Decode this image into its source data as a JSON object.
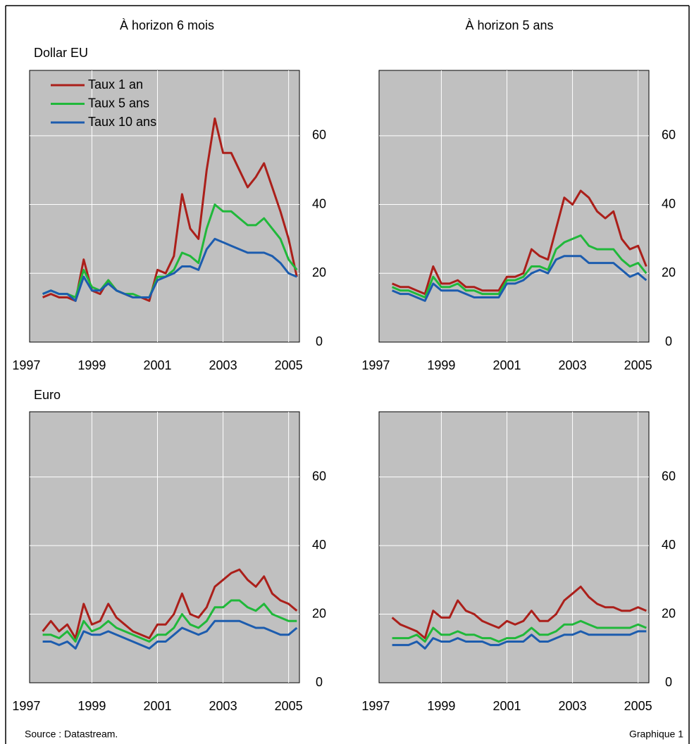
{
  "column_titles": [
    "À horizon 6 mois",
    "À horizon 5 ans"
  ],
  "row_titles": [
    "Dollar EU",
    "Euro"
  ],
  "source": "Source : Datastream.",
  "figure_label": "Graphique 1",
  "chart_data": [
    {
      "type": "line",
      "legend": "upper left",
      "x": [
        1997.5,
        1997.75,
        1998,
        1998.25,
        1998.5,
        1998.75,
        1999,
        1999.25,
        1999.5,
        1999.75,
        2000,
        2000.25,
        2000.5,
        2000.75,
        2001,
        2001.25,
        2001.5,
        2001.75,
        2002,
        2002.25,
        2002.5,
        2002.75,
        2003,
        2003.25,
        2003.5,
        2003.75,
        2004,
        2004.25,
        2004.5,
        2004.75,
        2005,
        2005.25
      ],
      "xlim": [
        1997.1,
        2005.33
      ],
      "xticks": [
        1997,
        1999,
        2001,
        2003,
        2005
      ],
      "ylim": [
        0,
        79
      ],
      "yticks": [
        0,
        20,
        40,
        60
      ],
      "grid": true,
      "series": [
        {
          "name": "Taux 1 an",
          "color": "#ab1f1a",
          "values": [
            13,
            14,
            13,
            13,
            12,
            24,
            15,
            14,
            18,
            15,
            14,
            13,
            13,
            12,
            21,
            20,
            25,
            43,
            33,
            30,
            50,
            65,
            55,
            55,
            50,
            45,
            48,
            52,
            45,
            38,
            30,
            19
          ]
        },
        {
          "name": "Taux 5 ans",
          "color": "#20b83a",
          "values": [
            14,
            15,
            14,
            14,
            13,
            21,
            16,
            15,
            18,
            15,
            14,
            14,
            13,
            13,
            19,
            19,
            21,
            26,
            25,
            23,
            33,
            40,
            38,
            38,
            36,
            34,
            34,
            36,
            33,
            30,
            24,
            21
          ]
        },
        {
          "name": "Taux 10 ans",
          "color": "#1c5cae",
          "values": [
            14,
            15,
            14,
            14,
            12,
            19,
            15,
            15,
            17,
            15,
            14,
            13,
            13,
            13,
            18,
            19,
            20,
            22,
            22,
            21,
            27,
            30,
            29,
            28,
            27,
            26,
            26,
            26,
            25,
            23,
            20,
            19
          ]
        }
      ]
    },
    {
      "type": "line",
      "x": [
        1997.5,
        1997.75,
        1998,
        1998.25,
        1998.5,
        1998.75,
        1999,
        1999.25,
        1999.5,
        1999.75,
        2000,
        2000.25,
        2000.5,
        2000.75,
        2001,
        2001.25,
        2001.5,
        2001.75,
        2002,
        2002.25,
        2002.5,
        2002.75,
        2003,
        2003.25,
        2003.5,
        2003.75,
        2004,
        2004.25,
        2004.5,
        2004.75,
        2005,
        2005.25
      ],
      "xlim": [
        1997.1,
        2005.33
      ],
      "xticks": [
        1997,
        1999,
        2001,
        2003,
        2005
      ],
      "ylim": [
        0,
        79
      ],
      "yticks": [
        0,
        20,
        40,
        60
      ],
      "grid": true,
      "series": [
        {
          "name": "Taux 1 an",
          "color": "#ab1f1a",
          "values": [
            17,
            16,
            16,
            15,
            14,
            22,
            17,
            17,
            18,
            16,
            16,
            15,
            15,
            15,
            19,
            19,
            20,
            27,
            25,
            24,
            33,
            42,
            40,
            44,
            42,
            38,
            36,
            38,
            30,
            27,
            28,
            22
          ]
        },
        {
          "name": "Taux 5 ans",
          "color": "#20b83a",
          "values": [
            16,
            15,
            15,
            14,
            13,
            19,
            16,
            16,
            17,
            15,
            15,
            14,
            14,
            14,
            18,
            18,
            19,
            22,
            22,
            21,
            27,
            29,
            30,
            31,
            28,
            27,
            27,
            27,
            24,
            22,
            23,
            20
          ]
        },
        {
          "name": "Taux 10 ans",
          "color": "#1c5cae",
          "values": [
            15,
            14,
            14,
            13,
            12,
            17,
            15,
            15,
            15,
            14,
            13,
            13,
            13,
            13,
            17,
            17,
            18,
            20,
            21,
            20,
            24,
            25,
            25,
            25,
            23,
            23,
            23,
            23,
            21,
            19,
            20,
            18
          ]
        }
      ]
    },
    {
      "type": "line",
      "x": [
        1997.5,
        1997.75,
        1998,
        1998.25,
        1998.5,
        1998.75,
        1999,
        1999.25,
        1999.5,
        1999.75,
        2000,
        2000.25,
        2000.5,
        2000.75,
        2001,
        2001.25,
        2001.5,
        2001.75,
        2002,
        2002.25,
        2002.5,
        2002.75,
        2003,
        2003.25,
        2003.5,
        2003.75,
        2004,
        2004.25,
        2004.5,
        2004.75,
        2005,
        2005.25
      ],
      "xlim": [
        1997.1,
        2005.33
      ],
      "xticks": [
        1997,
        1999,
        2001,
        2003,
        2005
      ],
      "ylim": [
        0,
        79
      ],
      "yticks": [
        0,
        20,
        40,
        60
      ],
      "grid": true,
      "series": [
        {
          "name": "Taux 1 an",
          "color": "#ab1f1a",
          "values": [
            15,
            18,
            15,
            17,
            13,
            23,
            17,
            18,
            23,
            19,
            17,
            15,
            14,
            13,
            17,
            17,
            20,
            26,
            20,
            19,
            22,
            28,
            30,
            32,
            33,
            30,
            28,
            31,
            26,
            24,
            23,
            21
          ]
        },
        {
          "name": "Taux 5 ans",
          "color": "#20b83a",
          "values": [
            14,
            14,
            13,
            15,
            12,
            18,
            15,
            16,
            18,
            16,
            15,
            14,
            13,
            12,
            14,
            14,
            16,
            20,
            17,
            16,
            18,
            22,
            22,
            24,
            24,
            22,
            21,
            23,
            20,
            19,
            18,
            18
          ]
        },
        {
          "name": "Taux 10 ans",
          "color": "#1c5cae",
          "values": [
            12,
            12,
            11,
            12,
            10,
            15,
            14,
            14,
            15,
            14,
            13,
            12,
            11,
            10,
            12,
            12,
            14,
            16,
            15,
            14,
            15,
            18,
            18,
            18,
            18,
            17,
            16,
            16,
            15,
            14,
            14,
            16
          ]
        }
      ]
    },
    {
      "type": "line",
      "x": [
        1997.5,
        1997.75,
        1998,
        1998.25,
        1998.5,
        1998.75,
        1999,
        1999.25,
        1999.5,
        1999.75,
        2000,
        2000.25,
        2000.5,
        2000.75,
        2001,
        2001.25,
        2001.5,
        2001.75,
        2002,
        2002.25,
        2002.5,
        2002.75,
        2003,
        2003.25,
        2003.5,
        2003.75,
        2004,
        2004.25,
        2004.5,
        2004.75,
        2005,
        2005.25
      ],
      "xlim": [
        1997.1,
        2005.33
      ],
      "xticks": [
        1997,
        1999,
        2001,
        2003,
        2005
      ],
      "ylim": [
        0,
        79
      ],
      "yticks": [
        0,
        20,
        40,
        60
      ],
      "grid": true,
      "series": [
        {
          "name": "Taux 1 an",
          "color": "#ab1f1a",
          "values": [
            19,
            17,
            16,
            15,
            13,
            21,
            19,
            19,
            24,
            21,
            20,
            18,
            17,
            16,
            18,
            17,
            18,
            21,
            18,
            18,
            20,
            24,
            26,
            28,
            25,
            23,
            22,
            22,
            21,
            21,
            22,
            21
          ]
        },
        {
          "name": "Taux 5 ans",
          "color": "#20b83a",
          "values": [
            13,
            13,
            13,
            14,
            12,
            16,
            14,
            14,
            15,
            14,
            14,
            13,
            13,
            12,
            13,
            13,
            14,
            16,
            14,
            14,
            15,
            17,
            17,
            18,
            17,
            16,
            16,
            16,
            16,
            16,
            17,
            16
          ]
        },
        {
          "name": "Taux 10 ans",
          "color": "#1c5cae",
          "values": [
            11,
            11,
            11,
            12,
            10,
            13,
            12,
            12,
            13,
            12,
            12,
            12,
            11,
            11,
            12,
            12,
            12,
            14,
            12,
            12,
            13,
            14,
            14,
            15,
            14,
            14,
            14,
            14,
            14,
            14,
            15,
            15
          ]
        }
      ]
    }
  ]
}
